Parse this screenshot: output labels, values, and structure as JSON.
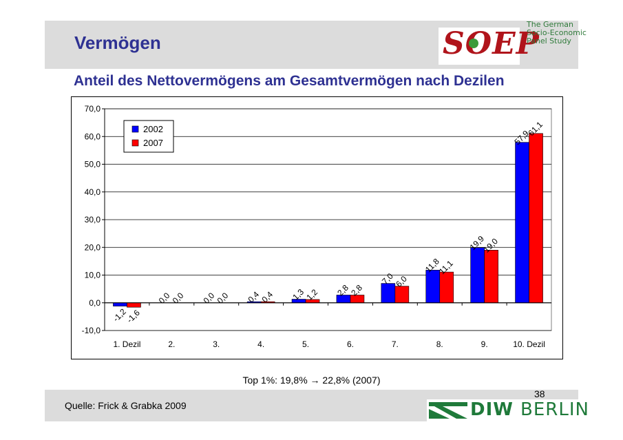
{
  "slide": {
    "title": "Vermögen",
    "chart_heading": "Anteil des Nettovermögens am Gesamtvermögen nach Dezilen",
    "footnote": "Top 1%: 19,8% → 22,8% (2007)",
    "source": "Quelle: Frick & Grabka 2009",
    "page_number": "38"
  },
  "logos": {
    "soep": "SOEP",
    "soep_subtitle": [
      "The German",
      "Socio-Economic",
      "Panel Study"
    ],
    "diw_bold": "DIW",
    "diw_light": "BERLIN"
  },
  "colors": {
    "title": "#2e3192",
    "series_2002": "#0000ff",
    "series_2007": "#ff0000",
    "soep_red": "#b0141b",
    "diw_green": "#1f7a3a"
  },
  "chart_data": {
    "type": "bar",
    "title": "Anteil des Nettovermögens am Gesamtvermögen nach Dezilen",
    "categories": [
      "1. Dezil",
      "2.",
      "3.",
      "4.",
      "5.",
      "6.",
      "7.",
      "8.",
      "9.",
      "10. Dezil"
    ],
    "series": [
      {
        "name": "2002",
        "values": [
          -1.2,
          0.0,
          0.0,
          0.4,
          1.3,
          2.8,
          7.0,
          11.8,
          19.9,
          57.9
        ],
        "labels": [
          "-1,2",
          "0,0",
          "0,0",
          "0,4",
          "1,3",
          "2,8",
          "7,0",
          "11,8",
          "19,9",
          "57,9"
        ]
      },
      {
        "name": "2007",
        "values": [
          -1.6,
          0.0,
          0.0,
          0.4,
          1.2,
          2.8,
          6.0,
          11.1,
          19.0,
          61.1
        ],
        "labels": [
          "-1,6",
          "0,0",
          "0,0",
          "0,4",
          "1,2",
          "2,8",
          "6,0",
          "11,1",
          "19,0",
          "61,1"
        ]
      }
    ],
    "ylim": [
      -10,
      70
    ],
    "yticks": [
      -10,
      0,
      10,
      20,
      30,
      40,
      50,
      60,
      70
    ],
    "ytick_labels": [
      "-10,0",
      "0,0",
      "10,0",
      "20,0",
      "30,0",
      "40,0",
      "50,0",
      "60,0",
      "70,0"
    ],
    "grid": true,
    "legend": "top-left"
  }
}
